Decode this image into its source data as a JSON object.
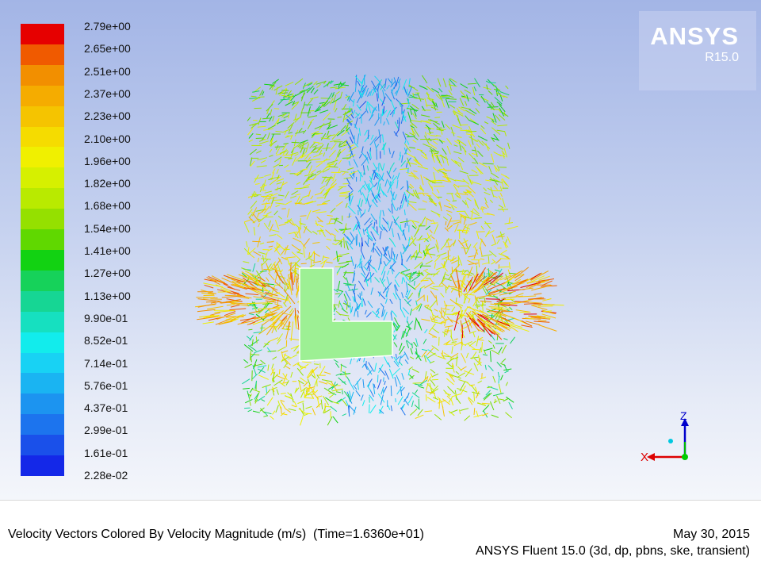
{
  "colorbar": {
    "colors": [
      "#e60000",
      "#f05a00",
      "#f28f00",
      "#f5ac00",
      "#f5c400",
      "#f5dc00",
      "#f0f000",
      "#d6f000",
      "#b9ea00",
      "#95e000",
      "#60d800",
      "#12d212",
      "#16d25a",
      "#16d694",
      "#16e0c0",
      "#12ecec",
      "#18d2f4",
      "#1ab4f2",
      "#1c94f0",
      "#1c74ee",
      "#1a50ea",
      "#1428e8"
    ],
    "labels": [
      "2.79e+00",
      "2.65e+00",
      "2.51e+00",
      "2.37e+00",
      "2.23e+00",
      "2.10e+00",
      "1.96e+00",
      "1.82e+00",
      "1.68e+00",
      "1.54e+00",
      "1.41e+00",
      "1.27e+00",
      "1.13e+00",
      "9.90e-01",
      "8.52e-01",
      "7.14e-01",
      "5.76e-01",
      "4.37e-01",
      "2.99e-01",
      "1.61e-01",
      "2.28e-02"
    ]
  },
  "logo": {
    "brand": "ANSYS",
    "version": "R15.0"
  },
  "axes": {
    "z": "Z",
    "x": "X"
  },
  "caption": {
    "title": "Velocity Vectors Colored By Velocity Magnitude (m/s)  (Time=1.6360e+01)",
    "date": "May 30, 2015",
    "solver": "ANSYS Fluent 15.0 (3d, dp, pbns, ske, transient)"
  }
}
